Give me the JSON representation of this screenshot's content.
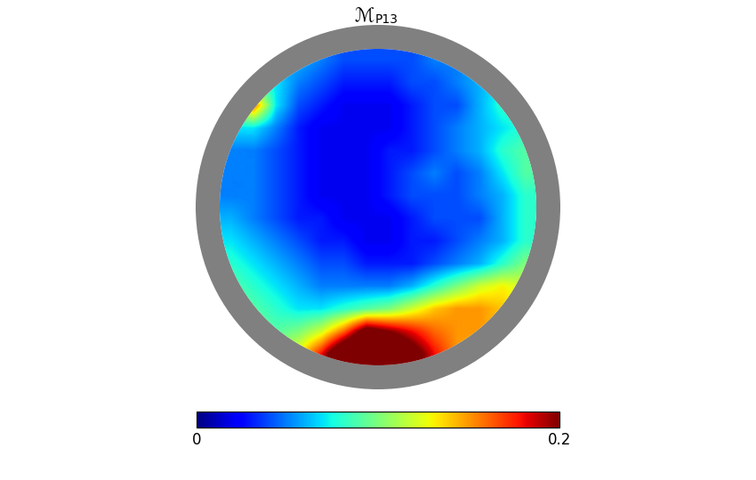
{
  "chart_data": {
    "type": "heatmap",
    "title": "ℳ",
    "title_subscript": "P13",
    "cells": [
      [
        0.05,
        0.05,
        0.05,
        0.06,
        0.05,
        0.04,
        0.04,
        0.04,
        0.04,
        0.05,
        0.05,
        0.06,
        0.06,
        0.06
      ],
      [
        0.06,
        0.08,
        0.07,
        0.05,
        0.04,
        0.03,
        0.03,
        0.03,
        0.04,
        0.04,
        0.05,
        0.06,
        0.07,
        0.07
      ],
      [
        0.1,
        0.16,
        0.07,
        0.04,
        0.03,
        0.02,
        0.02,
        0.02,
        0.03,
        0.04,
        0.04,
        0.06,
        0.08,
        0.08
      ],
      [
        0.07,
        0.07,
        0.05,
        0.03,
        0.02,
        0.02,
        0.02,
        0.02,
        0.03,
        0.04,
        0.05,
        0.06,
        0.07,
        0.08
      ],
      [
        0.05,
        0.05,
        0.04,
        0.03,
        0.02,
        0.02,
        0.02,
        0.03,
        0.03,
        0.04,
        0.05,
        0.06,
        0.08,
        0.09
      ],
      [
        0.05,
        0.05,
        0.04,
        0.03,
        0.02,
        0.02,
        0.02,
        0.03,
        0.04,
        0.05,
        0.04,
        0.05,
        0.07,
        0.09
      ],
      [
        0.05,
        0.05,
        0.04,
        0.03,
        0.02,
        0.02,
        0.02,
        0.03,
        0.04,
        0.04,
        0.04,
        0.05,
        0.06,
        0.08
      ],
      [
        0.06,
        0.05,
        0.04,
        0.03,
        0.03,
        0.02,
        0.02,
        0.02,
        0.03,
        0.04,
        0.04,
        0.04,
        0.06,
        0.08
      ],
      [
        0.07,
        0.06,
        0.05,
        0.04,
        0.03,
        0.03,
        0.02,
        0.02,
        0.03,
        0.03,
        0.04,
        0.05,
        0.06,
        0.08
      ],
      [
        0.08,
        0.07,
        0.06,
        0.05,
        0.04,
        0.04,
        0.03,
        0.03,
        0.03,
        0.04,
        0.05,
        0.06,
        0.08,
        0.1
      ],
      [
        0.09,
        0.08,
        0.07,
        0.06,
        0.05,
        0.05,
        0.05,
        0.05,
        0.06,
        0.08,
        0.1,
        0.12,
        0.13,
        0.12
      ],
      [
        0.1,
        0.09,
        0.08,
        0.07,
        0.07,
        0.08,
        0.09,
        0.1,
        0.12,
        0.14,
        0.15,
        0.15,
        0.14,
        0.13
      ],
      [
        0.1,
        0.1,
        0.09,
        0.1,
        0.12,
        0.16,
        0.22,
        0.2,
        0.18,
        0.16,
        0.15,
        0.15,
        0.14,
        0.12
      ],
      [
        0.1,
        0.1,
        0.11,
        0.13,
        0.18,
        0.25,
        0.28,
        0.26,
        0.22,
        0.18,
        0.15,
        0.14,
        0.12,
        0.1
      ]
    ],
    "colorbar_range": [
      0,
      0.2
    ],
    "colorbar_ticks": [
      0,
      0.2
    ]
  }
}
